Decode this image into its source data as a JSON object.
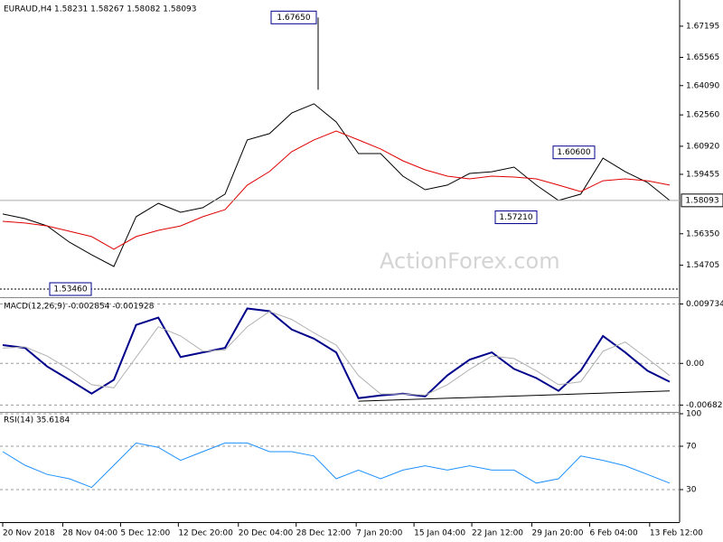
{
  "chart_data": [
    {
      "type": "line",
      "title": "EURAUD,H4 1.58231 1.58267 1.58082 1.58093",
      "watermark": "ActionForex.com",
      "ylim": [
        1.5313,
        1.6842
      ],
      "yticks": [
        1.67195,
        1.65565,
        {
          "value": 1.6409,
          "label": "1.64090"
        },
        {
          "value": 1.6256,
          "label": "1.62560"
        },
        {
          "value": 1.6092,
          "label": "1.60920"
        },
        1.59455,
        {
          "value": 1.5635,
          "label": "1.56350"
        },
        1.54705
      ],
      "series": [
        {
          "color": "#000000",
          "values": [
            1.5738,
            1.5714,
            1.5676,
            1.5591,
            1.5525,
            1.5464,
            1.5724,
            1.5794,
            1.5747,
            1.5771,
            1.5842,
            1.6125,
            1.6158,
            1.6266,
            1.6314,
            1.6219,
            1.6054,
            1.6054,
            1.5936,
            1.5865,
            1.5889,
            1.595,
            1.5959,
            1.5983,
            1.5889,
            1.5809,
            1.5842,
            1.603,
            1.5959,
            1.5903,
            1.5809
          ]
        },
        {
          "color": "#e00000",
          "values": [
            1.57,
            1.5691,
            1.5676,
            1.5648,
            1.562,
            1.5554,
            1.562,
            1.5653,
            1.5676,
            1.5724,
            1.5761,
            1.5889,
            1.596,
            1.6064,
            1.6125,
            1.6172,
            1.6125,
            1.6078,
            1.6016,
            1.5969,
            1.5936,
            1.5922,
            1.5936,
            1.5931,
            1.5922,
            1.5889,
            1.5855,
            1.5912,
            1.5922,
            1.5912,
            1.5889
          ]
        }
      ],
      "annotations": [
        {
          "value": 1.6765,
          "label": "1.67650"
        },
        {
          "value": 1.606,
          "label": "1.60600"
        },
        {
          "value": 1.5721,
          "label": "1.57210"
        },
        {
          "value": 1.5346,
          "label": "1.53460"
        },
        {
          "value": 1.58093,
          "label": "1.58093"
        }
      ]
    },
    {
      "type": "line",
      "title": "MACD(12,26,9) -0.002854 -0.001928",
      "ylim": [
        -0.0078,
        0.0104
      ],
      "yticks": [
        0.009734,
        {
          "value": 0,
          "label": "0.00"
        },
        -0.006826
      ],
      "series": [
        {
          "color": "#00008b",
          "values": [
            0.003,
            0.00255,
            -0.0005,
            -0.0027,
            -0.00495,
            -0.0027,
            0.0063,
            0.0075,
            0.00105,
            0.0018,
            0.00255,
            0.009,
            0.00855,
            0.00555,
            0.00405,
            0.0018,
            -0.0057,
            -0.00525,
            -0.00495,
            -0.0054,
            -0.00195,
            0.0006,
            0.0018,
            -0.0009,
            -0.0024,
            -0.0045,
            -0.0012,
            0.0045,
            0.0018,
            -0.0012,
            -0.003
          ]
        },
        {
          "color": "#b0b0b0",
          "values": [
            0.0025,
            0.0027,
            0.0012,
            -0.001,
            -0.0035,
            -0.004,
            0.001,
            0.006,
            0.0045,
            0.002,
            0.0022,
            0.006,
            0.0085,
            0.0072,
            0.005,
            0.003,
            -0.002,
            -0.005,
            -0.005,
            -0.0052,
            -0.0035,
            -0.001,
            0.0012,
            0.0008,
            -0.0012,
            -0.0035,
            -0.003,
            0.002,
            0.0035,
            0.0008,
            -0.002
          ]
        }
      ],
      "trendline": {
        "x": [
          16,
          30
        ],
        "values": [
          -0.0062,
          -0.0045
        ]
      }
    },
    {
      "type": "line",
      "title": "RSI(14) 35.6184",
      "ylim": [
        0,
        100
      ],
      "yticks": [
        100,
        70,
        30
      ],
      "series": [
        {
          "color": "#1e90ff",
          "values": [
            65,
            52.5,
            44,
            40,
            32,
            52.5,
            73,
            69,
            57,
            65,
            73,
            73,
            65,
            65,
            61,
            40,
            48,
            40,
            48,
            52,
            48,
            52,
            48,
            48,
            36,
            40,
            61,
            57,
            52,
            44,
            36
          ]
        }
      ],
      "xlim": [
        0,
        30
      ],
      "xticks": [
        {
          "value": 0,
          "label": "20 Nov 2018"
        },
        {
          "value": 2.7,
          "label": "28 Nov 04:00"
        },
        {
          "value": 5.3,
          "label": "5 Dec 12:00"
        },
        {
          "value": 7.9,
          "label": "12 Dec 20:00"
        },
        {
          "value": 10.6,
          "label": "20 Dec 04:00"
        },
        {
          "value": 13.2,
          "label": "28 Dec 12:00"
        },
        {
          "value": 15.9,
          "label": "7 Jan 20:00"
        },
        {
          "value": 18.5,
          "label": "15 Jan 04:00"
        },
        {
          "value": 21.1,
          "label": "22 Jan 12:00"
        },
        {
          "value": 23.8,
          "label": "29 Jan 20:00"
        },
        {
          "value": 26.4,
          "label": "6 Feb 04:00"
        },
        {
          "value": 29.1,
          "label": "13 Feb 12:00"
        }
      ]
    }
  ]
}
